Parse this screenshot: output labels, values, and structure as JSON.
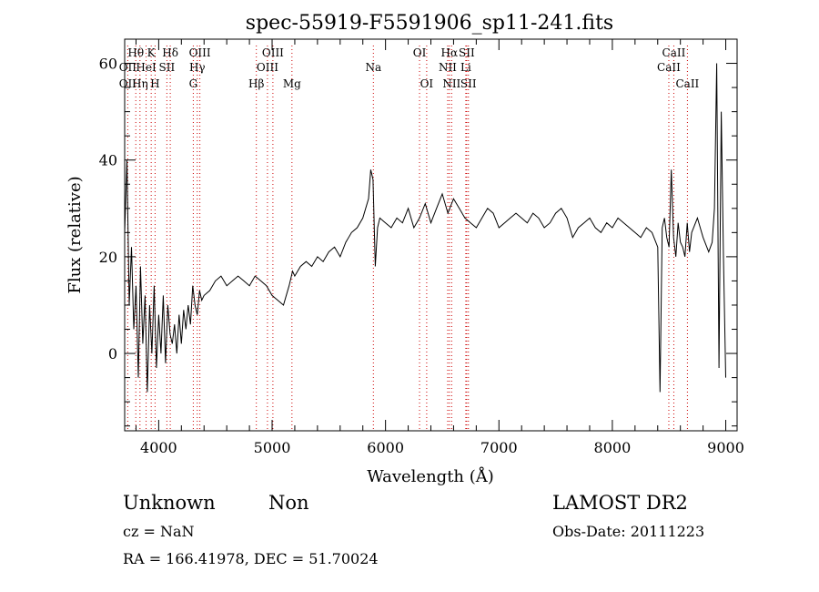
{
  "chart_data": {
    "type": "line",
    "title": "spec-55919-F5591906_sp11-241.fits",
    "xlabel": "Wavelength (Å)",
    "ylabel": "Flux (relative)",
    "xlim": [
      3700,
      9100
    ],
    "ylim": [
      -16,
      65
    ],
    "xticks": [
      4000,
      5000,
      6000,
      7000,
      8000,
      9000
    ],
    "yticks": [
      0,
      20,
      40,
      60
    ],
    "grid": false,
    "line_color": "#000000",
    "marker_color": "#cc0000",
    "spectral_lines": [
      {
        "name": "Hθ",
        "wavelength": 3798,
        "row": 0
      },
      {
        "name": "K",
        "wavelength": 3934,
        "row": 0
      },
      {
        "name": "Hδ",
        "wavelength": 4102,
        "row": 0
      },
      {
        "name": "OIII",
        "wavelength": 4363,
        "row": 0
      },
      {
        "name": "OIII",
        "wavelength": 5007,
        "row": 0
      },
      {
        "name": "OI",
        "wavelength": 6300,
        "row": 0
      },
      {
        "name": "Hα",
        "wavelength": 6563,
        "row": 0
      },
      {
        "name": "SII",
        "wavelength": 6716,
        "row": 0
      },
      {
        "name": "CaII",
        "wavelength": 8542,
        "row": 0
      },
      {
        "name": "OII",
        "wavelength": 3727,
        "row": 1
      },
      {
        "name": "HeI",
        "wavelength": 3889,
        "row": 1
      },
      {
        "name": "SII",
        "wavelength": 4072,
        "row": 1
      },
      {
        "name": "Hγ",
        "wavelength": 4340,
        "row": 1
      },
      {
        "name": "OIII",
        "wavelength": 4959,
        "row": 1
      },
      {
        "name": "Na",
        "wavelength": 5893,
        "row": 1
      },
      {
        "name": "NII",
        "wavelength": 6548,
        "row": 1
      },
      {
        "name": "Li",
        "wavelength": 6708,
        "row": 1
      },
      {
        "name": "CaII",
        "wavelength": 8498,
        "row": 1
      },
      {
        "name": "OII",
        "wavelength": 3727,
        "row": 2
      },
      {
        "name": "Hη",
        "wavelength": 3835,
        "row": 2
      },
      {
        "name": "H",
        "wavelength": 3968,
        "row": 2
      },
      {
        "name": "G",
        "wavelength": 4305,
        "row": 2
      },
      {
        "name": "Hβ",
        "wavelength": 4861,
        "row": 2
      },
      {
        "name": "Mg",
        "wavelength": 5175,
        "row": 2
      },
      {
        "name": "OI",
        "wavelength": 6363,
        "row": 2
      },
      {
        "name": "NII",
        "wavelength": 6583,
        "row": 2
      },
      {
        "name": "SII",
        "wavelength": 6731,
        "row": 2
      },
      {
        "name": "CaII",
        "wavelength": 8662,
        "row": 2
      }
    ],
    "series": [
      {
        "x": [
          3700,
          3720,
          3740,
          3760,
          3780,
          3800,
          3820,
          3840,
          3860,
          3880,
          3900,
          3920,
          3940,
          3960,
          3980,
          4000,
          4020,
          4040,
          4060,
          4080,
          4100,
          4120,
          4140,
          4160,
          4180,
          4200,
          4220,
          4240,
          4260,
          4280,
          4300,
          4320,
          4340,
          4360,
          4380,
          4400,
          4450,
          4500,
          4550,
          4600,
          4650,
          4700,
          4750,
          4800,
          4850,
          4900,
          4950,
          5000,
          5050,
          5100,
          5150,
          5180,
          5200,
          5250,
          5300,
          5350,
          5400,
          5450,
          5500,
          5550,
          5600,
          5650,
          5700,
          5750,
          5800,
          5850,
          5870,
          5890,
          5910,
          5930,
          5950,
          6000,
          6050,
          6100,
          6150,
          6200,
          6250,
          6300,
          6350,
          6400,
          6450,
          6500,
          6550,
          6600,
          6650,
          6700,
          6750,
          6800,
          6850,
          6900,
          6950,
          7000,
          7050,
          7100,
          7150,
          7200,
          7250,
          7300,
          7350,
          7400,
          7450,
          7500,
          7550,
          7600,
          7650,
          7700,
          7750,
          7800,
          7850,
          7900,
          7950,
          8000,
          8050,
          8100,
          8150,
          8200,
          8250,
          8300,
          8350,
          8400,
          8420,
          8440,
          8460,
          8480,
          8500,
          8520,
          8540,
          8560,
          8580,
          8600,
          8620,
          8640,
          8660,
          8680,
          8700,
          8750,
          8800,
          8850,
          8880,
          8900,
          8920,
          8940,
          8960,
          8980,
          9000
        ],
        "y": [
          25,
          40,
          10,
          22,
          5,
          14,
          -5,
          18,
          2,
          12,
          -8,
          10,
          0,
          14,
          -3,
          8,
          0,
          12,
          -2,
          10,
          4,
          2,
          6,
          0,
          8,
          2,
          9,
          5,
          10,
          6,
          14,
          10,
          8,
          13,
          11,
          12,
          13,
          15,
          16,
          14,
          15,
          16,
          15,
          14,
          16,
          15,
          14,
          12,
          11,
          10,
          14,
          17,
          16,
          18,
          19,
          18,
          20,
          19,
          21,
          22,
          20,
          23,
          25,
          26,
          28,
          32,
          38,
          36,
          18,
          26,
          28,
          27,
          26,
          28,
          27,
          30,
          26,
          28,
          31,
          27,
          30,
          33,
          29,
          32,
          30,
          28,
          27,
          26,
          28,
          30,
          29,
          26,
          27,
          28,
          29,
          28,
          27,
          29,
          28,
          26,
          27,
          29,
          30,
          28,
          24,
          26,
          27,
          28,
          26,
          25,
          27,
          26,
          28,
          27,
          26,
          25,
          24,
          26,
          25,
          22,
          -8,
          26,
          28,
          24,
          22,
          38,
          24,
          20,
          27,
          23,
          22,
          20,
          27,
          21,
          25,
          28,
          24,
          21,
          23,
          30,
          60,
          -3,
          50,
          20,
          -5
        ]
      }
    ]
  },
  "footer": {
    "class_label": "Unknown",
    "subclass_label": "Non",
    "survey_label": "LAMOST DR2",
    "cz_text": "cz = NaN",
    "obs_date_text": "Obs-Date: 20111223",
    "coords_text": "RA = 166.41978, DEC =  51.70024"
  }
}
